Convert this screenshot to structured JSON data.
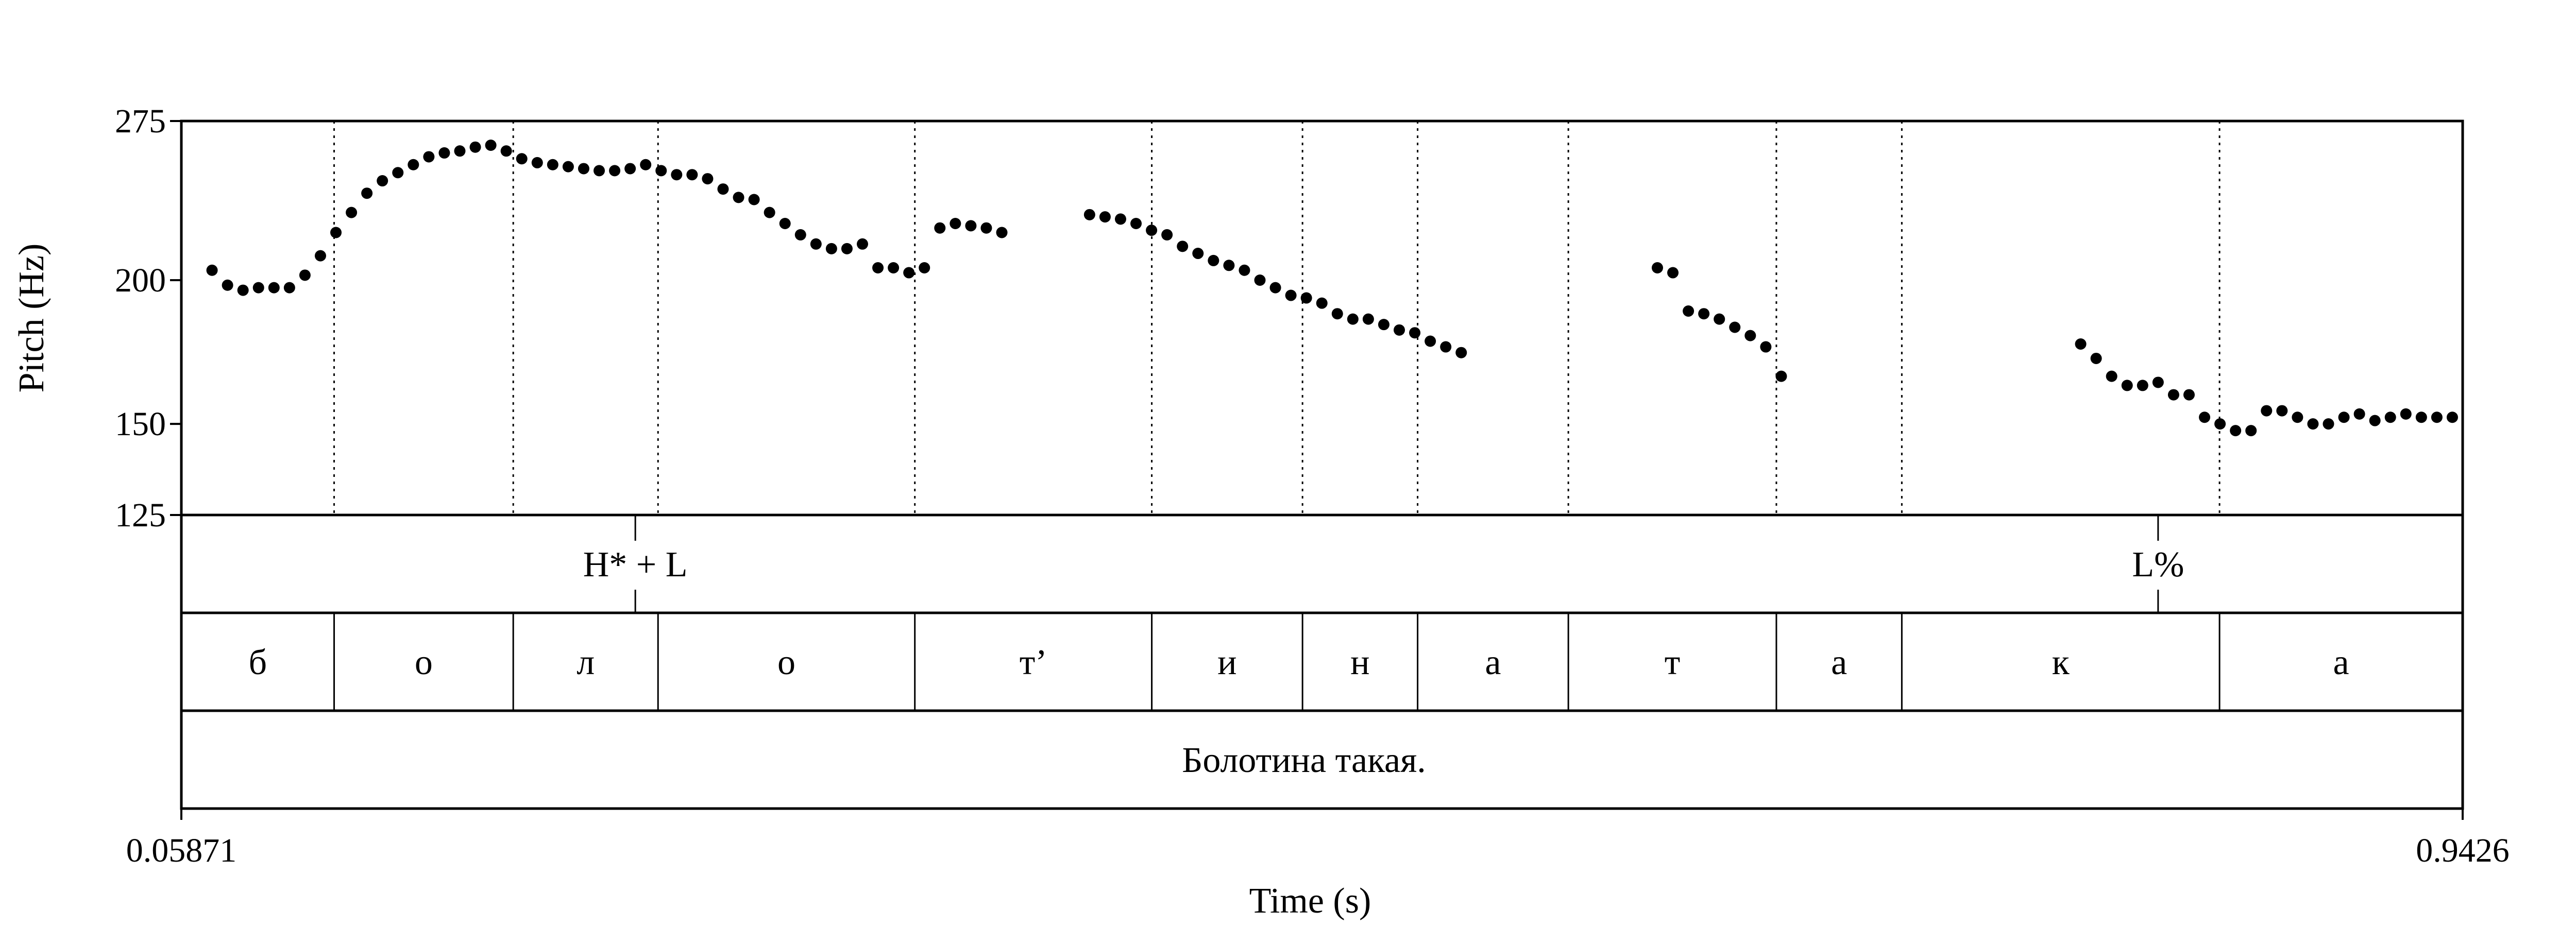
{
  "chart_data": {
    "type": "scatter",
    "xlabel": "Time (s)",
    "ylabel": "Pitch (Hz)",
    "xlim": [
      0.05871,
      0.9426
    ],
    "ylim": [
      125,
      275
    ],
    "x_tick_labels": [
      "0.05871",
      "0.9426"
    ],
    "y_ticks": [
      125,
      150,
      200,
      275
    ],
    "y_tick_labels": [
      "125",
      "150",
      "200",
      "275"
    ],
    "y_scale": "log",
    "grid": false,
    "marker_color": "#000000",
    "points": [
      [
        0.0706,
        204
      ],
      [
        0.0766,
        198
      ],
      [
        0.0826,
        196
      ],
      [
        0.0886,
        197
      ],
      [
        0.0946,
        197
      ],
      [
        0.1006,
        197
      ],
      [
        0.1066,
        202
      ],
      [
        0.1126,
        210
      ],
      [
        0.1186,
        220
      ],
      [
        0.1246,
        229
      ],
      [
        0.1306,
        238
      ],
      [
        0.1366,
        244
      ],
      [
        0.1426,
        248
      ],
      [
        0.1486,
        252
      ],
      [
        0.1546,
        256
      ],
      [
        0.1606,
        258
      ],
      [
        0.1666,
        259
      ],
      [
        0.1726,
        261
      ],
      [
        0.1786,
        262
      ],
      [
        0.1846,
        259
      ],
      [
        0.1906,
        255
      ],
      [
        0.1966,
        253
      ],
      [
        0.2026,
        252
      ],
      [
        0.2086,
        251
      ],
      [
        0.2146,
        250
      ],
      [
        0.2206,
        249
      ],
      [
        0.2266,
        249
      ],
      [
        0.2326,
        250
      ],
      [
        0.2386,
        252
      ],
      [
        0.2446,
        249
      ],
      [
        0.2506,
        247
      ],
      [
        0.2566,
        247
      ],
      [
        0.2626,
        245
      ],
      [
        0.2686,
        240
      ],
      [
        0.2746,
        236
      ],
      [
        0.2806,
        235
      ],
      [
        0.2866,
        229
      ],
      [
        0.2926,
        224
      ],
      [
        0.2986,
        219
      ],
      [
        0.3046,
        215
      ],
      [
        0.3106,
        213
      ],
      [
        0.3166,
        213
      ],
      [
        0.3226,
        215
      ],
      [
        0.3286,
        205
      ],
      [
        0.3346,
        205
      ],
      [
        0.3406,
        203
      ],
      [
        0.3466,
        205
      ],
      [
        0.3526,
        222
      ],
      [
        0.3586,
        224
      ],
      [
        0.3646,
        223
      ],
      [
        0.3706,
        222
      ],
      [
        0.3766,
        220
      ],
      [
        0.4106,
        228
      ],
      [
        0.4166,
        227
      ],
      [
        0.4226,
        226
      ],
      [
        0.4286,
        224
      ],
      [
        0.4346,
        221
      ],
      [
        0.4406,
        219
      ],
      [
        0.4466,
        214
      ],
      [
        0.4526,
        211
      ],
      [
        0.4586,
        208
      ],
      [
        0.4646,
        206
      ],
      [
        0.4706,
        204
      ],
      [
        0.4766,
        200
      ],
      [
        0.4826,
        197
      ],
      [
        0.4886,
        194
      ],
      [
        0.4946,
        193
      ],
      [
        0.5006,
        191
      ],
      [
        0.5066,
        187
      ],
      [
        0.5126,
        185
      ],
      [
        0.5186,
        185
      ],
      [
        0.5246,
        183
      ],
      [
        0.5306,
        181
      ],
      [
        0.5366,
        180
      ],
      [
        0.5426,
        177
      ],
      [
        0.5486,
        175
      ],
      [
        0.5546,
        173
      ],
      [
        0.6306,
        205
      ],
      [
        0.6366,
        203
      ],
      [
        0.6426,
        188
      ],
      [
        0.6486,
        187
      ],
      [
        0.6546,
        185
      ],
      [
        0.6606,
        182
      ],
      [
        0.6666,
        179
      ],
      [
        0.6726,
        175
      ],
      [
        0.6786,
        165
      ],
      [
        0.7946,
        176
      ],
      [
        0.8006,
        171
      ],
      [
        0.8066,
        165
      ],
      [
        0.8126,
        162
      ],
      [
        0.8186,
        162
      ],
      [
        0.8246,
        163
      ],
      [
        0.8306,
        159
      ],
      [
        0.8366,
        159
      ],
      [
        0.8426,
        152
      ],
      [
        0.8486,
        150
      ],
      [
        0.8546,
        148
      ],
      [
        0.8606,
        148
      ],
      [
        0.8666,
        154
      ],
      [
        0.8726,
        154
      ],
      [
        0.8786,
        152
      ],
      [
        0.8846,
        150
      ],
      [
        0.8906,
        150
      ],
      [
        0.8966,
        152
      ],
      [
        0.9026,
        153
      ],
      [
        0.9086,
        151
      ],
      [
        0.9146,
        152
      ],
      [
        0.9206,
        153
      ],
      [
        0.9266,
        152
      ],
      [
        0.9326,
        152
      ],
      [
        0.9386,
        152
      ]
    ],
    "tiers": {
      "tones": [
        {
          "time": 0.2346,
          "label": "H* + L"
        },
        {
          "time": 0.8246,
          "label": "L%"
        }
      ],
      "segments": [
        {
          "start": 0.05871,
          "end": 0.1179,
          "label": "б"
        },
        {
          "start": 0.1179,
          "end": 0.1873,
          "label": "о"
        },
        {
          "start": 0.1873,
          "end": 0.2434,
          "label": "л"
        },
        {
          "start": 0.2434,
          "end": 0.3429,
          "label": "о"
        },
        {
          "start": 0.3429,
          "end": 0.4347,
          "label": "т’"
        },
        {
          "start": 0.4347,
          "end": 0.4931,
          "label": "и"
        },
        {
          "start": 0.4931,
          "end": 0.5377,
          "label": "н"
        },
        {
          "start": 0.5377,
          "end": 0.5961,
          "label": "а"
        },
        {
          "start": 0.5961,
          "end": 0.6767,
          "label": "т"
        },
        {
          "start": 0.6767,
          "end": 0.7253,
          "label": "а"
        },
        {
          "start": 0.7253,
          "end": 0.8484,
          "label": "к"
        },
        {
          "start": 0.8484,
          "end": 0.9426,
          "label": "а"
        }
      ],
      "utterance": [
        {
          "start": 0.05871,
          "end": 0.9426,
          "label": "Болотина такая."
        }
      ]
    }
  }
}
